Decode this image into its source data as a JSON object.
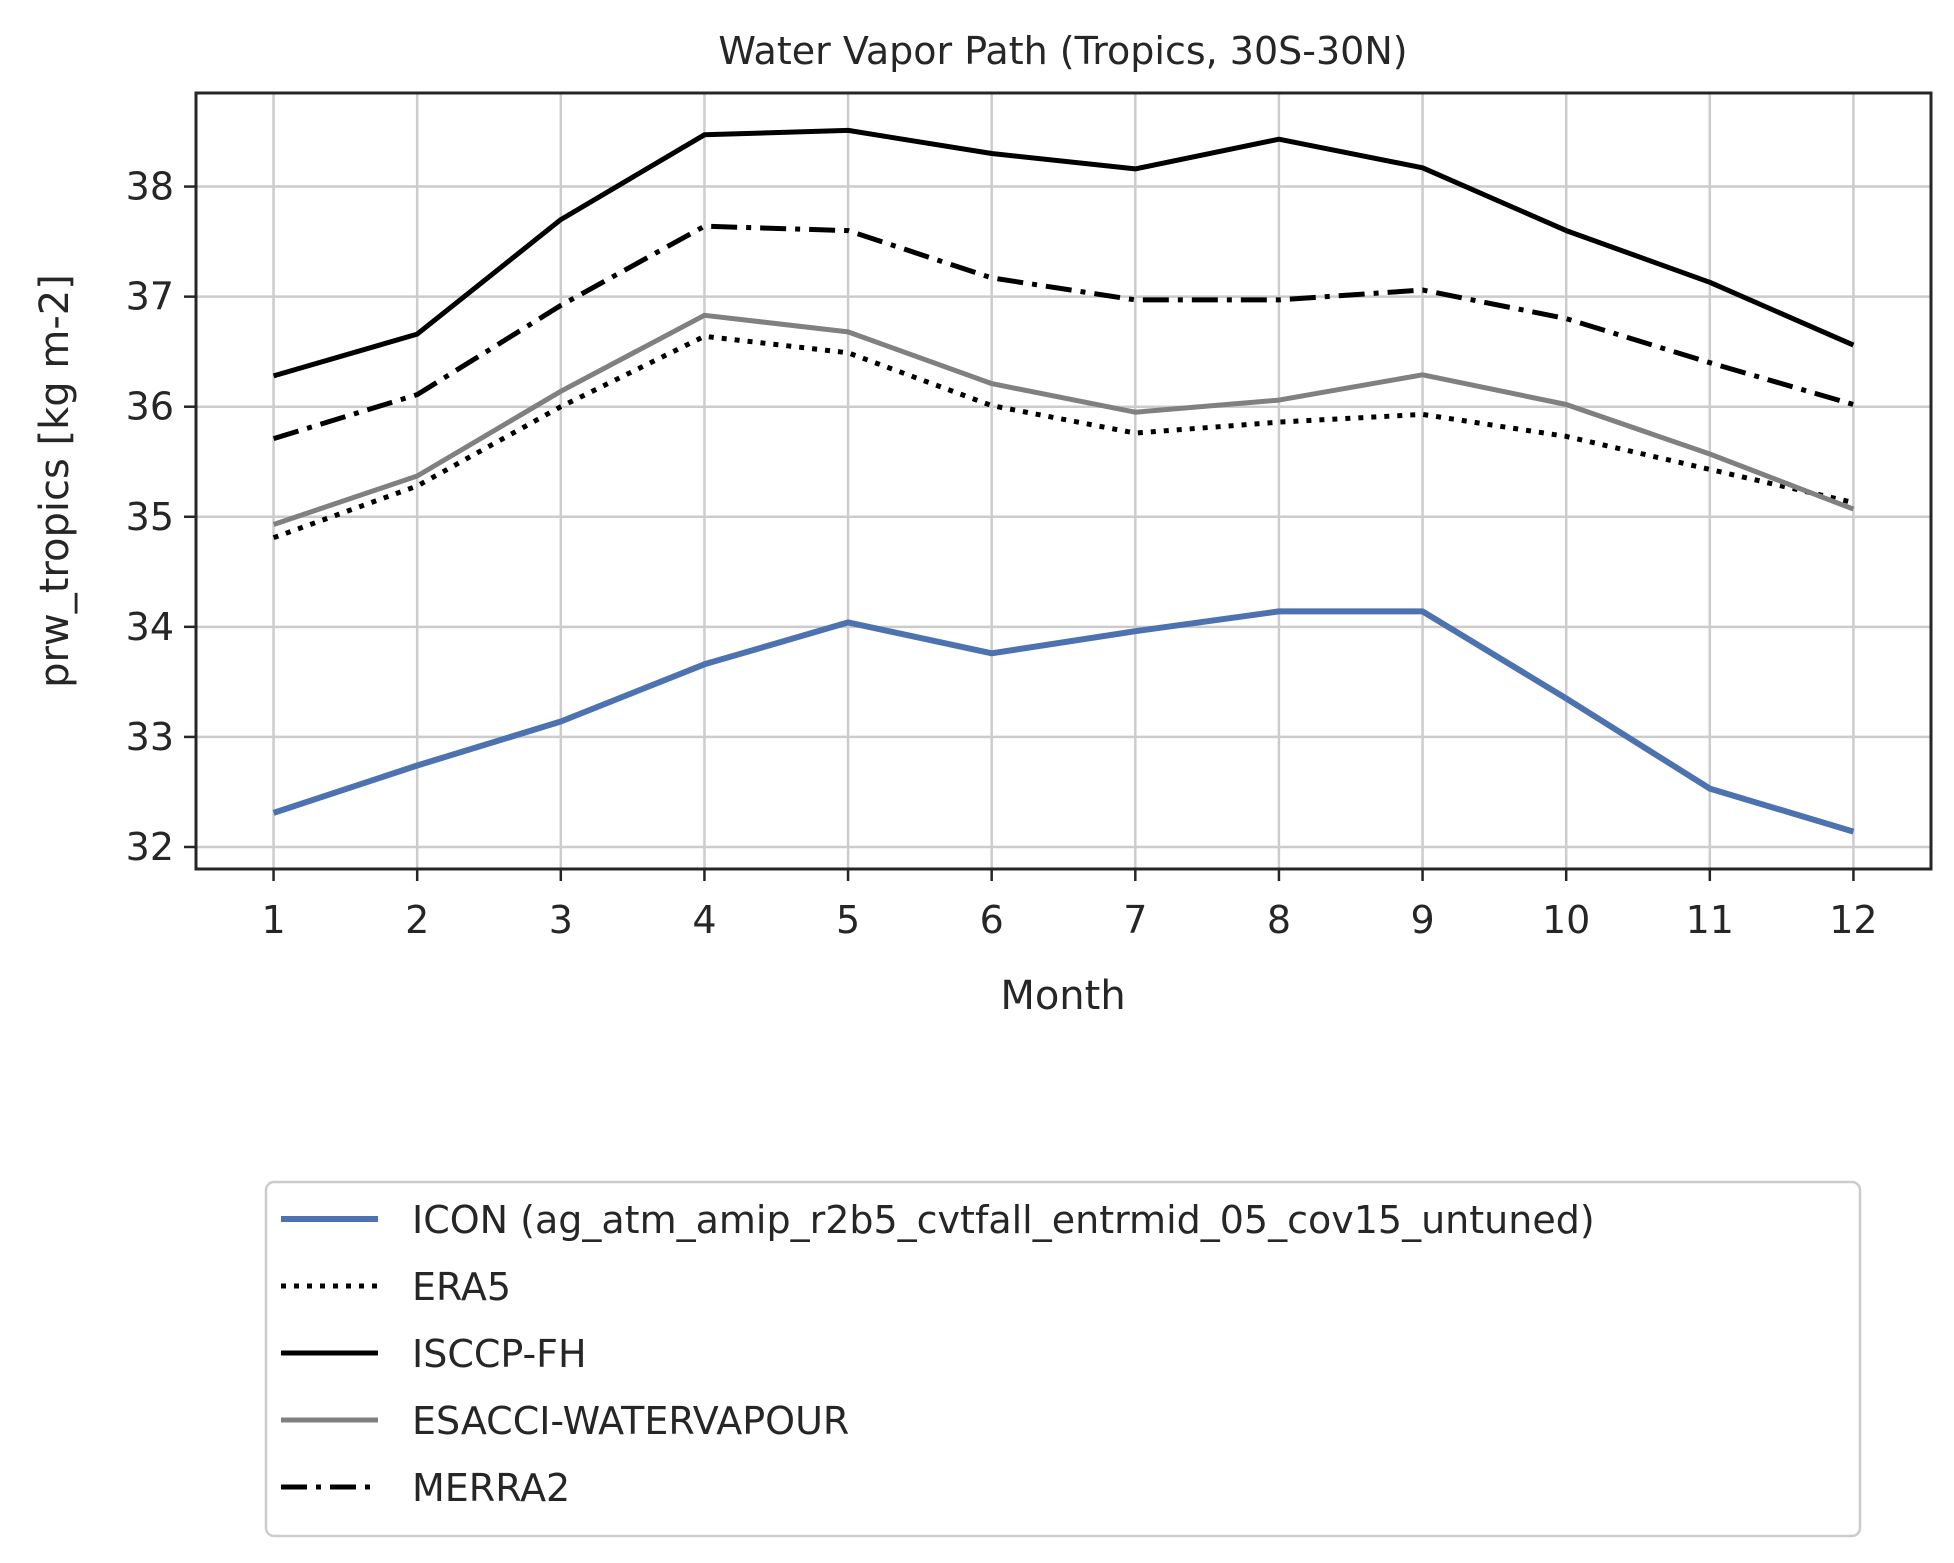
{
  "chart_data": {
    "type": "line",
    "title": "Water Vapor Path (Tropics, 30S-30N)",
    "xlabel": "Month",
    "ylabel": "prw_tropics [kg m-2]",
    "x": [
      1,
      2,
      3,
      4,
      5,
      6,
      7,
      8,
      9,
      10,
      11,
      12
    ],
    "xticks": [
      "1",
      "2",
      "3",
      "4",
      "5",
      "6",
      "7",
      "8",
      "9",
      "10",
      "11",
      "12"
    ],
    "yticks": [
      32,
      33,
      34,
      35,
      36,
      37,
      38
    ],
    "ylim": [
      31.8,
      38.85
    ],
    "xlim": [
      0.46,
      12.54
    ],
    "grid": true,
    "legend_position": "below",
    "series": [
      {
        "name": "ICON (ag_atm_amip_r2b5_cvtfall_entrmid_05_cov15_untuned)",
        "color": "#4c72b0",
        "line_style": "solid",
        "values": [
          32.31,
          32.74,
          33.14,
          33.66,
          34.04,
          33.76,
          33.96,
          34.14,
          34.14,
          33.35,
          32.53,
          32.14
        ]
      },
      {
        "name": "ERA5",
        "color": "#000000",
        "line_style": "dotted",
        "values": [
          34.81,
          35.28,
          36.0,
          36.64,
          36.49,
          36.01,
          35.76,
          35.86,
          35.93,
          35.73,
          35.43,
          35.13
        ]
      },
      {
        "name": "ISCCP-FH",
        "color": "#000000",
        "line_style": "solid",
        "values": [
          36.28,
          36.66,
          37.7,
          38.47,
          38.51,
          38.3,
          38.16,
          38.43,
          38.17,
          37.6,
          37.13,
          36.56
        ]
      },
      {
        "name": "ESACCI-WATERVAPOUR",
        "color": "#808080",
        "line_style": "solid",
        "values": [
          34.93,
          35.37,
          36.14,
          36.83,
          36.68,
          36.21,
          35.95,
          36.06,
          36.29,
          36.02,
          35.57,
          35.07
        ]
      },
      {
        "name": "MERRA2",
        "color": "#000000",
        "line_style": "dashdot",
        "values": [
          35.71,
          36.11,
          36.92,
          37.64,
          37.6,
          37.17,
          36.97,
          36.97,
          37.06,
          36.8,
          36.4,
          36.02
        ]
      }
    ]
  }
}
